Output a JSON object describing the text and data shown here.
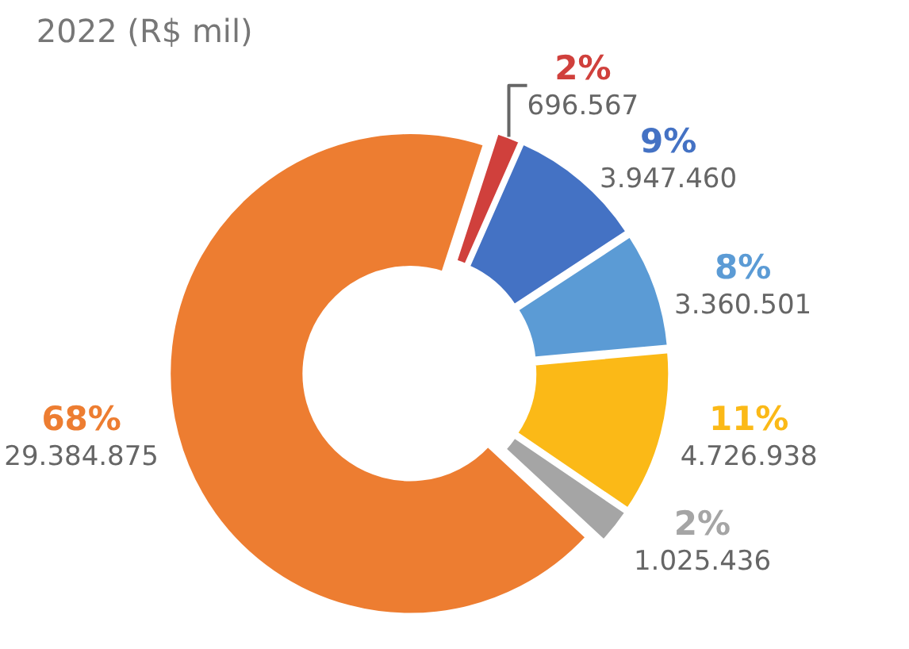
{
  "chart_data": {
    "type": "donut",
    "title": "2022 (R$ mil)",
    "categories": [
      null,
      null,
      null,
      null,
      null,
      null
    ],
    "values": [
      696567,
      3947460,
      3360501,
      4726938,
      1025436,
      29384875
    ],
    "colors": [
      "#d0403c",
      "#4472c4",
      "#5b9bd5",
      "#fbb917",
      "#a5a5a5",
      "#ed7d31"
    ],
    "value_labels": [
      "2%\n696.567",
      "9%\n3.947.460",
      "8%\n3.360.501",
      "11%\n4.726.938",
      "2%\n1.025.436",
      "68%\n29.384.875"
    ],
    "legend": false
  }
}
